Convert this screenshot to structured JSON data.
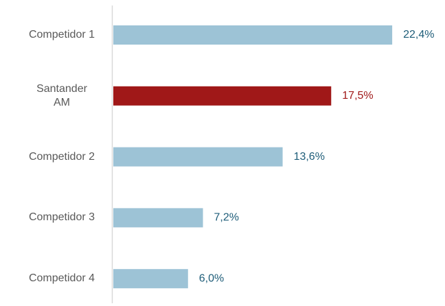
{
  "chart_data": {
    "type": "bar",
    "orientation": "horizontal",
    "categories": [
      "Competidor 1",
      "Santander AM",
      "Competidor 2",
      "Competidor 3",
      "Competidor 4"
    ],
    "values": [
      22.4,
      17.5,
      13.6,
      7.2,
      6.0
    ],
    "value_labels": [
      "22,4%",
      "17,5%",
      "13,6%",
      "7,2%",
      "6,0%"
    ],
    "colors": [
      "#9dc3d6",
      "#a01818",
      "#9dc3d6",
      "#9dc3d6",
      "#9dc3d6"
    ],
    "label_colors": [
      "#1d5c78",
      "#a01818",
      "#1d5c78",
      "#1d5c78",
      "#1d5c78"
    ]
  }
}
